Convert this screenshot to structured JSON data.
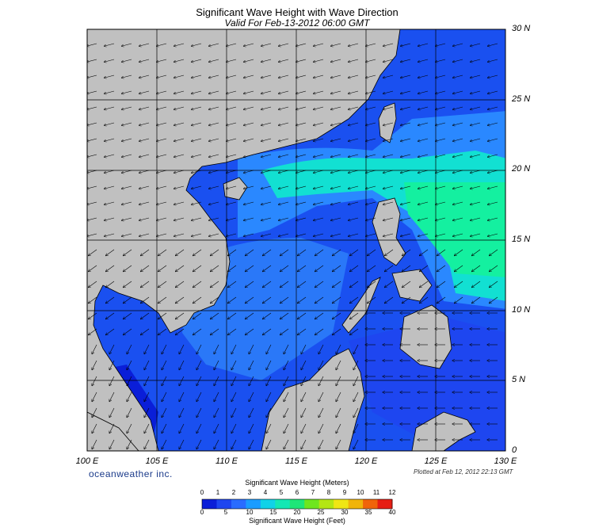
{
  "title": "Significant Wave Height with Wave Direction",
  "subtitle": "Valid For Feb-13-2012 06:00 GMT",
  "brand": "oceanweather inc.",
  "plotted": "Plotted at Feb 12, 2012 22:13 GMT",
  "lat_labels": [
    {
      "value": 30,
      "text": "30 N"
    },
    {
      "value": 25,
      "text": "25 N"
    },
    {
      "value": 20,
      "text": "20 N"
    },
    {
      "value": 15,
      "text": "15 N"
    },
    {
      "value": 10,
      "text": "10 N"
    },
    {
      "value": 5,
      "text": "5 N"
    },
    {
      "value": 0,
      "text": "0"
    }
  ],
  "lon_labels": [
    {
      "value": 100,
      "text": "100 E"
    },
    {
      "value": 105,
      "text": "105 E"
    },
    {
      "value": 110,
      "text": "110 E"
    },
    {
      "value": 115,
      "text": "115 E"
    },
    {
      "value": 120,
      "text": "120 E"
    },
    {
      "value": 125,
      "text": "125 E"
    },
    {
      "value": 130,
      "text": "130 E"
    }
  ],
  "legend": {
    "title_meters": "Significant Wave Height (Meters)",
    "title_feet": "Significant Wave Height (Feet)",
    "meter_ticks": [
      "0",
      "1",
      "2",
      "3",
      "4",
      "5",
      "6",
      "7",
      "8",
      "9",
      "10",
      "11",
      "12"
    ],
    "feet_ticks": [
      "0",
      "5",
      "10",
      "15",
      "20",
      "25",
      "30",
      "35",
      "40"
    ],
    "colors": [
      "#0a1ed8",
      "#1e46f0",
      "#2a6cff",
      "#1a9cff",
      "#10d2e8",
      "#14e8b4",
      "#1ee678",
      "#6ee61e",
      "#b4e614",
      "#f0e614",
      "#f0b40a",
      "#f0640a",
      "#e61e14"
    ]
  },
  "colors": {
    "land": "#c0c0c0",
    "sea_low": "#1a50f0",
    "sea_mid": "#2a88ff",
    "sea_high": "#12e0d2",
    "sea_max": "#14f0a0"
  }
}
